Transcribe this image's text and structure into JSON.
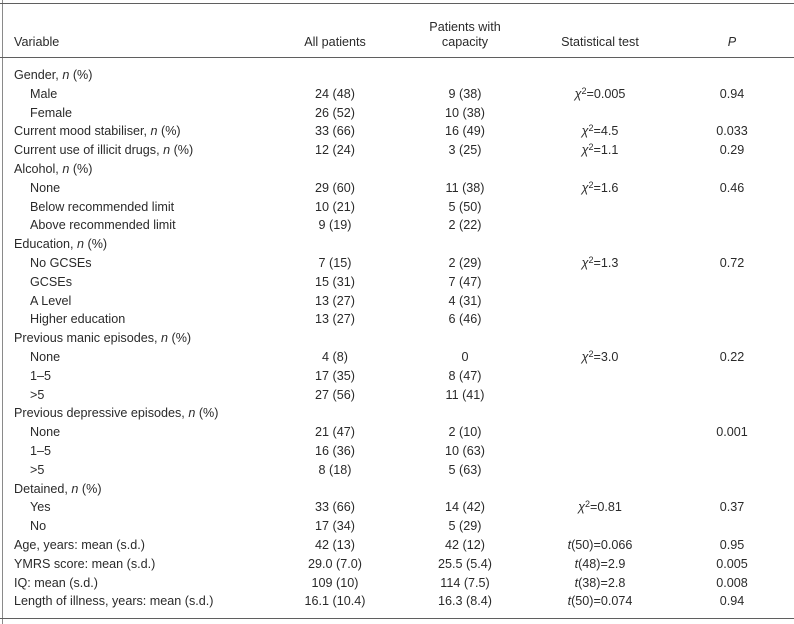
{
  "page": {
    "background_color": "#ffffff",
    "text_color": "#2a2a2a",
    "rule_color": "#5f5f5f"
  },
  "header": {
    "variable": "Variable",
    "all_patients": "All patients",
    "capacity_line1": "Patients with",
    "capacity_line2": "capacity",
    "statistical_test": "Statistical test",
    "p": "P"
  },
  "rows": [
    {
      "label": "Gender, n (%)",
      "indent": 0,
      "all": "",
      "capacity": "",
      "test": "",
      "p": ""
    },
    {
      "label": "Male",
      "indent": 1,
      "all": "24 (48)",
      "capacity": "9 (38)",
      "test": "χ2=0.005",
      "p": "0.94"
    },
    {
      "label": "Female",
      "indent": 1,
      "all": "26 (52)",
      "capacity": "10 (38)",
      "test": "",
      "p": ""
    },
    {
      "label": "Current mood stabiliser, n (%)",
      "indent": 0,
      "all": "33 (66)",
      "capacity": "16 (49)",
      "test": "χ2=4.5",
      "p": "0.033"
    },
    {
      "label": "Current use of illicit drugs, n (%)",
      "indent": 0,
      "all": "12 (24)",
      "capacity": "3 (25)",
      "test": "χ2=1.1",
      "p": "0.29"
    },
    {
      "label": "Alcohol, n (%)",
      "indent": 0,
      "all": "",
      "capacity": "",
      "test": "",
      "p": ""
    },
    {
      "label": "None",
      "indent": 1,
      "all": "29 (60)",
      "capacity": "11 (38)",
      "test": "χ2=1.6",
      "p": "0.46"
    },
    {
      "label": "Below recommended limit",
      "indent": 1,
      "all": "10 (21)",
      "capacity": "5 (50)",
      "test": "",
      "p": ""
    },
    {
      "label": "Above recommended limit",
      "indent": 1,
      "all": "9 (19)",
      "capacity": "2 (22)",
      "test": "",
      "p": ""
    },
    {
      "label": "Education, n (%)",
      "indent": 0,
      "all": "",
      "capacity": "",
      "test": "",
      "p": ""
    },
    {
      "label": "No GCSEs",
      "indent": 1,
      "all": "7 (15)",
      "capacity": "2 (29)",
      "test": "χ2=1.3",
      "p": "0.72"
    },
    {
      "label": "GCSEs",
      "indent": 1,
      "all": "15 (31)",
      "capacity": "7 (47)",
      "test": "",
      "p": ""
    },
    {
      "label": "A Level",
      "indent": 1,
      "all": "13 (27)",
      "capacity": "4 (31)",
      "test": "",
      "p": ""
    },
    {
      "label": "Higher education",
      "indent": 1,
      "all": "13 (27)",
      "capacity": "6 (46)",
      "test": "",
      "p": ""
    },
    {
      "label": "Previous manic episodes, n (%)",
      "indent": 0,
      "all": "",
      "capacity": "",
      "test": "",
      "p": ""
    },
    {
      "label": "None",
      "indent": 1,
      "all": "4 (8)",
      "capacity": "0",
      "test": "χ2=3.0",
      "p": "0.22"
    },
    {
      "label": "1–5",
      "indent": 1,
      "all": "17 (35)",
      "capacity": "8 (47)",
      "test": "",
      "p": ""
    },
    {
      "label": ">5",
      "indent": 1,
      "all": "27 (56)",
      "capacity": "11 (41)",
      "test": "",
      "p": ""
    },
    {
      "label": "Previous depressive episodes, n (%)",
      "indent": 0,
      "all": "",
      "capacity": "",
      "test": "",
      "p": ""
    },
    {
      "label": "None",
      "indent": 1,
      "all": "21 (47)",
      "capacity": "2 (10)",
      "test": "",
      "p": "0.001"
    },
    {
      "label": "1–5",
      "indent": 1,
      "all": "16 (36)",
      "capacity": "10 (63)",
      "test": "",
      "p": ""
    },
    {
      "label": ">5",
      "indent": 1,
      "all": "8 (18)",
      "capacity": "5 (63)",
      "test": "",
      "p": ""
    },
    {
      "label": "Detained, n (%)",
      "indent": 0,
      "all": "",
      "capacity": "",
      "test": "",
      "p": ""
    },
    {
      "label": "Yes",
      "indent": 1,
      "all": "33 (66)",
      "capacity": "14 (42)",
      "test": "χ2=0.81",
      "p": "0.37"
    },
    {
      "label": "No",
      "indent": 1,
      "all": "17 (34)",
      "capacity": "5 (29)",
      "test": "",
      "p": ""
    },
    {
      "label": "Age, years: mean (s.d.)",
      "indent": 0,
      "all": "42 (13)",
      "capacity": "42 (12)",
      "test": "t(50)=0.066",
      "p": "0.95"
    },
    {
      "label": "YMRS score: mean (s.d.)",
      "indent": 0,
      "all": "29.0 (7.0)",
      "capacity": "25.5 (5.4)",
      "test": "t(48)=2.9",
      "p": "0.005"
    },
    {
      "label": "IQ: mean (s.d.)",
      "indent": 0,
      "all": "109 (10)",
      "capacity": "114 (7.5)",
      "test": "t(38)=2.8",
      "p": "0.008"
    },
    {
      "label": "Length of illness, years: mean (s.d.)",
      "indent": 0,
      "all": "16.1 (10.4)",
      "capacity": "16.3 (8.4)",
      "test": "t(50)=0.074",
      "p": "0.94"
    }
  ]
}
